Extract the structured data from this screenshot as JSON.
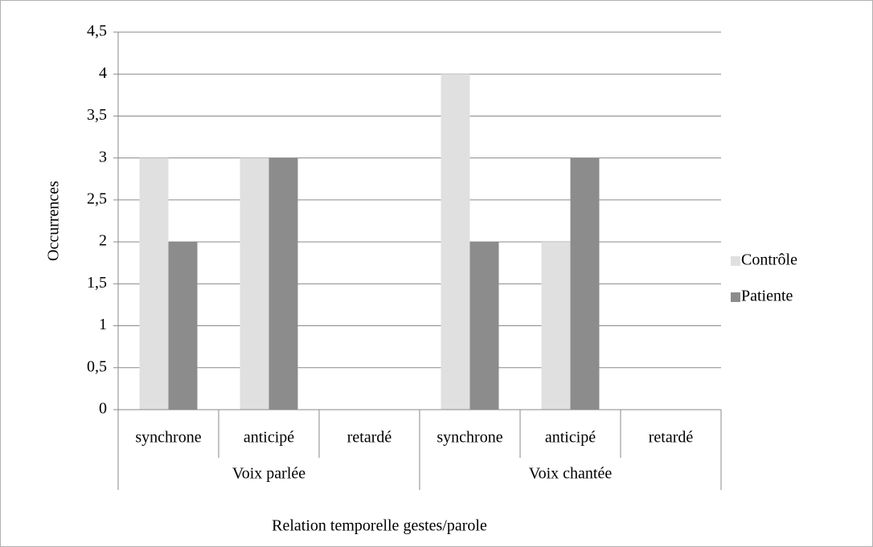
{
  "chart_data": {
    "type": "bar",
    "x_label": "Relation temporelle gestes/parole",
    "y_label": "Occurrences",
    "groups": [
      "Voix parlée",
      "Voix chantée"
    ],
    "categories": [
      "synchrone",
      "anticipé",
      "retardé",
      "synchrone",
      "anticipé",
      "retardé"
    ],
    "series": [
      {
        "name": "Contrôle",
        "color": "#e0e0e0",
        "values": [
          3,
          3,
          0,
          4,
          2,
          0
        ]
      },
      {
        "name": "Patiente",
        "color": "#8c8c8c",
        "values": [
          2,
          3,
          0,
          2,
          3,
          0
        ]
      }
    ],
    "ylim": [
      0,
      4.5
    ],
    "yticks": [
      0,
      {
        "value": 0.5,
        "label": "0,5"
      },
      1,
      {
        "value": 1.5,
        "label": "1,5"
      },
      2,
      {
        "value": 2.5,
        "label": "2,5"
      },
      3,
      {
        "value": 3.5,
        "label": "3,5"
      },
      4,
      {
        "value": 4.5,
        "label": "4,5"
      }
    ],
    "grid": true,
    "legend": "right"
  }
}
